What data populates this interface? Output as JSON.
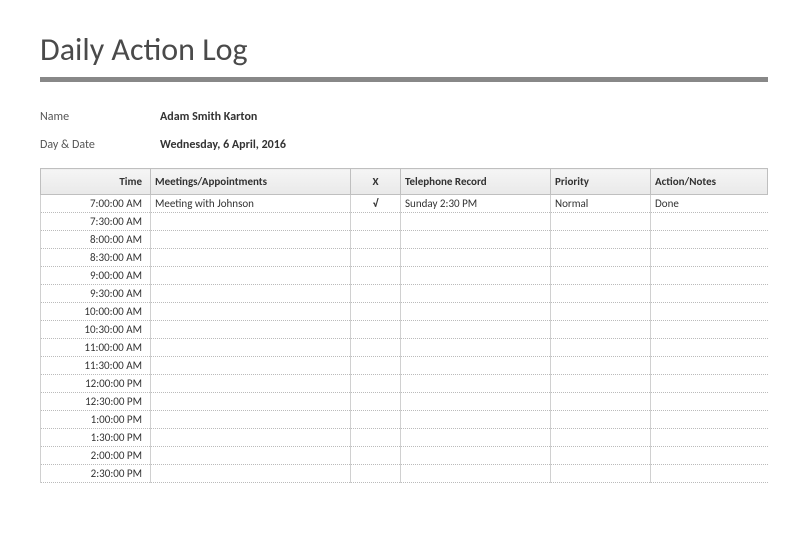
{
  "title": "Daily Action Log",
  "meta": {
    "name_label": "Name",
    "name_value": "Adam Smith Karton",
    "date_label": "Day & Date",
    "date_value": "Wednesday, 6 April, 2016"
  },
  "columns": {
    "time": "Time",
    "meet": "Meetings/Appointments",
    "x": "X",
    "tel": "Telephone Record",
    "pri": "Priority",
    "act": "Action/Notes"
  },
  "rows": [
    {
      "time": "7:00:00 AM",
      "meet": "Meeting with Johnson",
      "x": "√",
      "tel": "Sunday 2:30 PM",
      "pri": "Normal",
      "act": "Done"
    },
    {
      "time": "7:30:00 AM",
      "meet": "",
      "x": "",
      "tel": "",
      "pri": "",
      "act": ""
    },
    {
      "time": "8:00:00 AM",
      "meet": "",
      "x": "",
      "tel": "",
      "pri": "",
      "act": ""
    },
    {
      "time": "8:30:00 AM",
      "meet": "",
      "x": "",
      "tel": "",
      "pri": "",
      "act": ""
    },
    {
      "time": "9:00:00 AM",
      "meet": "",
      "x": "",
      "tel": "",
      "pri": "",
      "act": ""
    },
    {
      "time": "9:30:00 AM",
      "meet": "",
      "x": "",
      "tel": "",
      "pri": "",
      "act": ""
    },
    {
      "time": "10:00:00 AM",
      "meet": "",
      "x": "",
      "tel": "",
      "pri": "",
      "act": ""
    },
    {
      "time": "10:30:00 AM",
      "meet": "",
      "x": "",
      "tel": "",
      "pri": "",
      "act": ""
    },
    {
      "time": "11:00:00 AM",
      "meet": "",
      "x": "",
      "tel": "",
      "pri": "",
      "act": ""
    },
    {
      "time": "11:30:00 AM",
      "meet": "",
      "x": "",
      "tel": "",
      "pri": "",
      "act": ""
    },
    {
      "time": "12:00:00 PM",
      "meet": "",
      "x": "",
      "tel": "",
      "pri": "",
      "act": ""
    },
    {
      "time": "12:30:00 PM",
      "meet": "",
      "x": "",
      "tel": "",
      "pri": "",
      "act": ""
    },
    {
      "time": "1:00:00 PM",
      "meet": "",
      "x": "",
      "tel": "",
      "pri": "",
      "act": ""
    },
    {
      "time": "1:30:00 PM",
      "meet": "",
      "x": "",
      "tel": "",
      "pri": "",
      "act": ""
    },
    {
      "time": "2:00:00 PM",
      "meet": "",
      "x": "",
      "tel": "",
      "pri": "",
      "act": ""
    },
    {
      "time": "2:30:00 PM",
      "meet": "",
      "x": "",
      "tel": "",
      "pri": "",
      "act": ""
    }
  ]
}
